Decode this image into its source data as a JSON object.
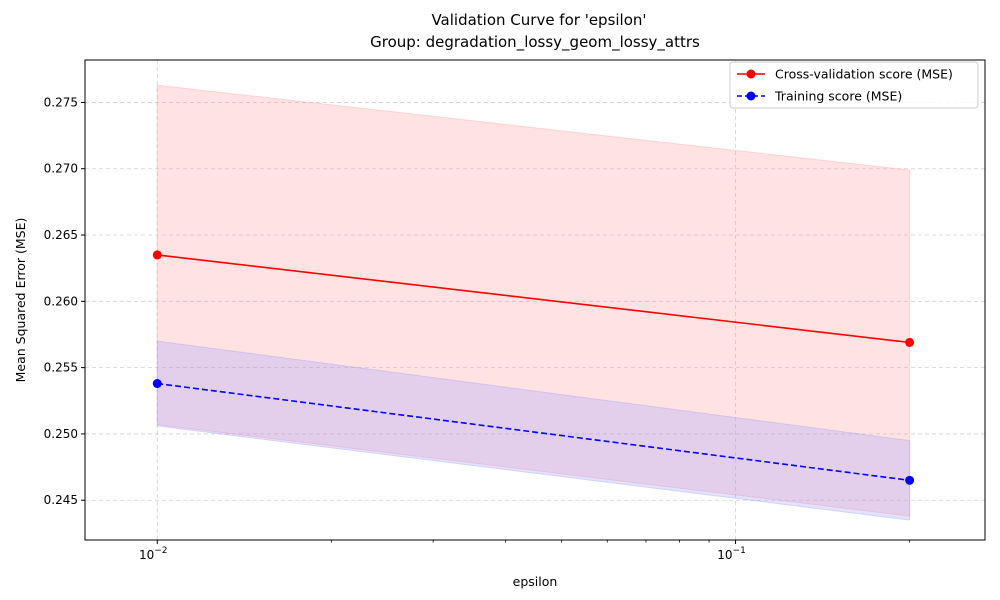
{
  "chart_data": {
    "type": "line",
    "title": "Validation Curve for 'epsilon'",
    "subtitle": "Group: degradation_lossy_geom_lossy_attrs",
    "xlabel": "epsilon",
    "ylabel": "Mean Squared Error (MSE)",
    "xscale": "log",
    "xlim": [
      0.0075,
      0.27
    ],
    "ylim": [
      0.242,
      0.2782
    ],
    "x": [
      0.01,
      0.2
    ],
    "x_ticks": [
      {
        "value": 0.01,
        "base": "10",
        "exp": "−2"
      },
      {
        "value": 0.1,
        "base": "10",
        "exp": "−1"
      }
    ],
    "y_ticks": [
      0.245,
      0.25,
      0.255,
      0.26,
      0.265,
      0.27,
      0.275
    ],
    "y_tick_labels": [
      "0.245",
      "0.250",
      "0.255",
      "0.260",
      "0.265",
      "0.270",
      "0.275"
    ],
    "grid": true,
    "legend_position": "top-right",
    "series": [
      {
        "name": "Cross-validation score (MSE)",
        "values": [
          0.2635,
          0.2569
        ],
        "band_upper": [
          0.2763,
          0.2699
        ],
        "band_lower": [
          0.2507,
          0.2438
        ],
        "color": "#ff0000",
        "band_color": "#ff9c9c",
        "line_style": "solid"
      },
      {
        "name": "Training score (MSE)",
        "values": [
          0.2538,
          0.2465
        ],
        "band_upper": [
          0.257,
          0.2495
        ],
        "band_lower": [
          0.2506,
          0.2435
        ],
        "color": "#0000ff",
        "band_color": "#9c9cff",
        "line_style": "dashed"
      }
    ]
  }
}
